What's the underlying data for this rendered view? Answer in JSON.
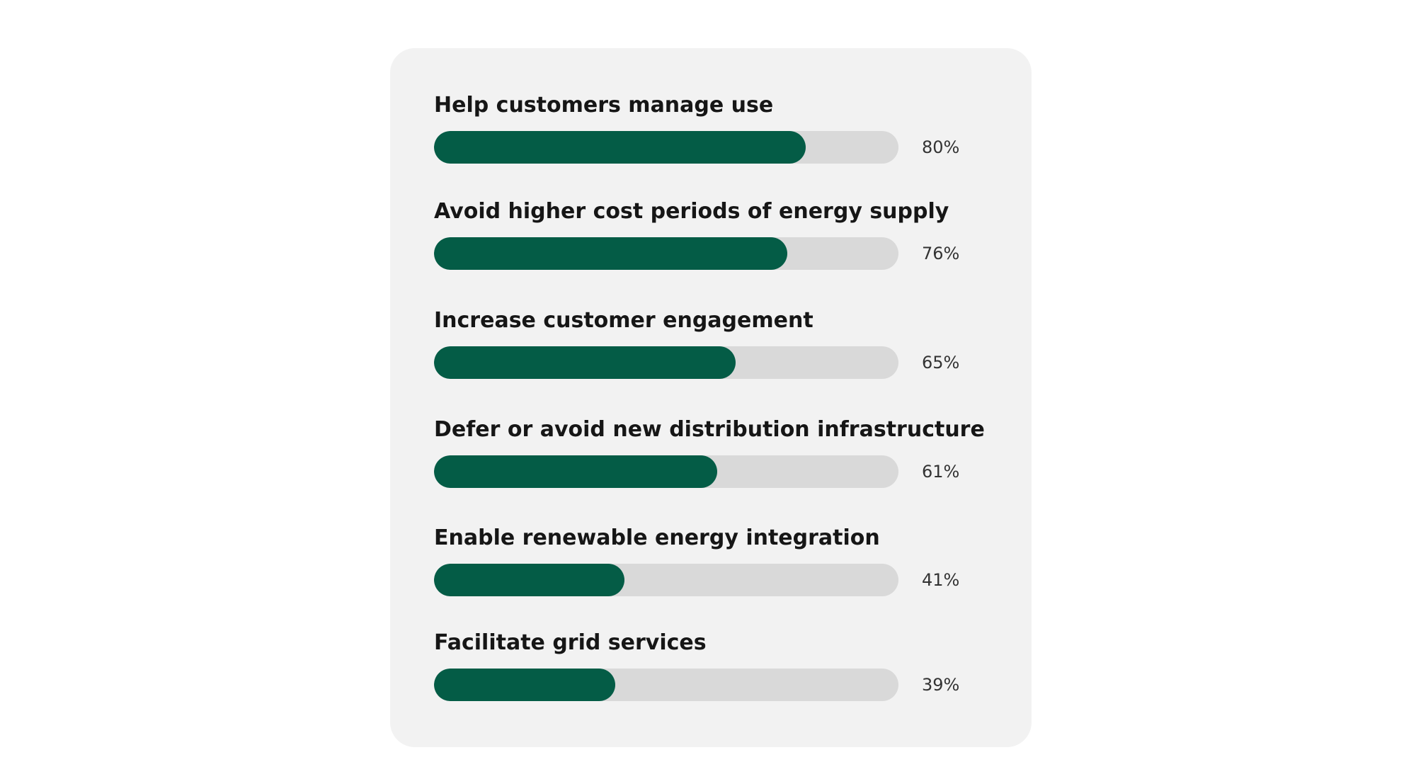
{
  "chart_data": {
    "type": "bar",
    "orientation": "horizontal",
    "categories": [
      "Help customers manage use",
      "Avoid higher cost periods of energy supply",
      "Increase customer engagement",
      "Defer or avoid new distribution infrastructure",
      "Enable renewable energy integration",
      "Facilitate grid services"
    ],
    "values": [
      80,
      76,
      65,
      61,
      41,
      39
    ],
    "value_labels": [
      "80%",
      "76%",
      "65%",
      "61%",
      "41%",
      "39%"
    ],
    "xlim": [
      0,
      100
    ],
    "grid": false,
    "legend": "none"
  },
  "colors": {
    "bar_fill": "#045c46",
    "bar_track": "#d9d9d9",
    "card_background": "#f2f2f2"
  }
}
